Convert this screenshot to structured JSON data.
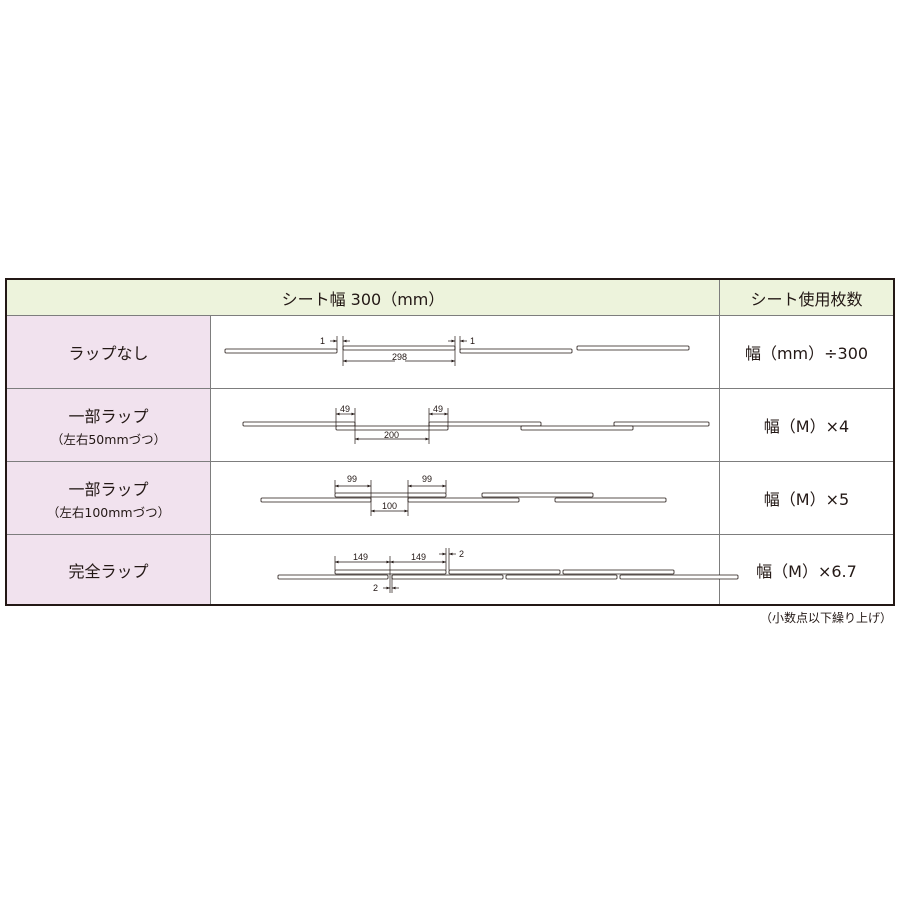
{
  "header": {
    "width_label": "シート幅 300（mm）",
    "count_label": "シート使用枚数"
  },
  "rows": [
    {
      "label": "ラップなし",
      "sub": "",
      "formula": "幅（mm）÷300",
      "dims": [
        "1",
        "1",
        "298"
      ]
    },
    {
      "label": "一部ラップ",
      "sub": "（左右50mmづつ）",
      "formula": "幅（M）×4",
      "dims": [
        "49",
        "49",
        "200"
      ]
    },
    {
      "label": "一部ラップ",
      "sub": "（左右100mmづつ）",
      "formula": "幅（M）×5",
      "dims": [
        "99",
        "99",
        "100"
      ]
    },
    {
      "label": "完全ラップ",
      "sub": "",
      "formula": "幅（M）×6.7",
      "dims": [
        "149",
        "149",
        "2",
        "2"
      ]
    }
  ],
  "note": "（小数点以下繰り上げ）",
  "colors": {
    "header_bg": "#edf3dc",
    "label_bg": "#f1e2ee",
    "border": "#231815"
  }
}
